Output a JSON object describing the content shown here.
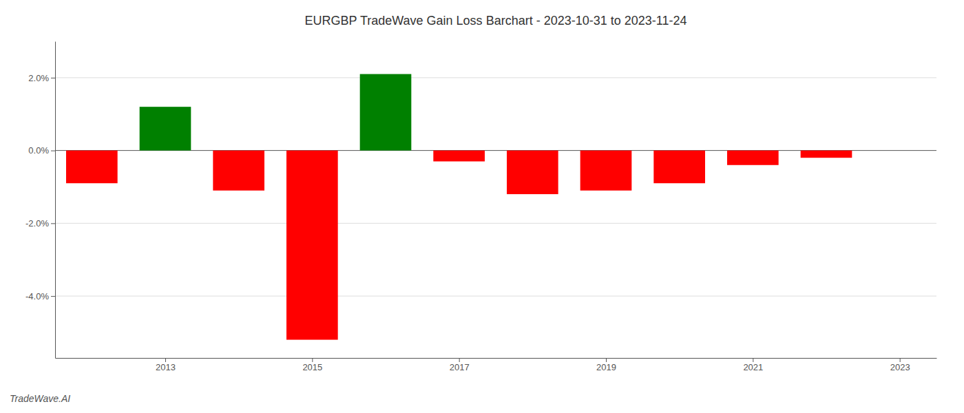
{
  "chart_data": {
    "type": "bar",
    "title": "EURGBP TradeWave Gain Loss Barchart - 2023-10-31 to 2023-11-24",
    "annotations": [
      "TradeWave.AI"
    ],
    "x": [
      2012,
      2013,
      2014,
      2015,
      2016,
      2017,
      2018,
      2019,
      2020,
      2021,
      2022
    ],
    "values": [
      -0.009,
      0.012,
      -0.011,
      -0.052,
      0.021,
      -0.003,
      -0.012,
      -0.011,
      -0.009,
      -0.004,
      -0.002
    ],
    "colors": [
      "#ff0000",
      "#008000",
      "#ff0000",
      "#ff0000",
      "#008000",
      "#ff0000",
      "#ff0000",
      "#ff0000",
      "#ff0000",
      "#ff0000",
      "#ff0000"
    ],
    "xlim": [
      2011.5,
      2023.5
    ],
    "xticks": [
      2013,
      2015,
      2017,
      2019,
      2021,
      2023
    ],
    "ylim": [
      -0.057,
      0.03
    ],
    "yticks": [
      {
        "value": -0.04,
        "label": "-4.0%"
      },
      {
        "value": -0.02,
        "label": "-2.0%"
      },
      {
        "value": 0,
        "label": "0.0%"
      },
      {
        "value": 0.02,
        "label": "2.0%"
      }
    ],
    "grid": true
  }
}
